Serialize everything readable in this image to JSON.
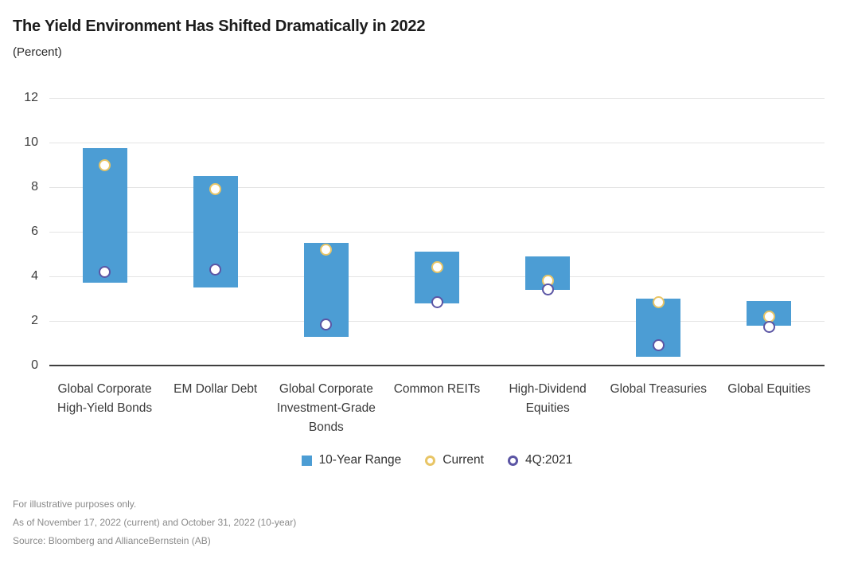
{
  "title": "The Yield Environment Has Shifted Dramatically in 2022",
  "subtitle": "(Percent)",
  "colors": {
    "bar": "#4c9dd4",
    "current_ring": "#e8c566",
    "prior_ring": "#5b55a4",
    "gridline": "#e4e4e4",
    "axis": "#3f3f3f",
    "title_text": "#1c1c1c",
    "footnote_text": "#8a8a8a"
  },
  "chart_data": {
    "type": "bar",
    "subtype": "floating-range-columns-with-point-markers",
    "title": "The Yield Environment Has Shifted Dramatically in 2022",
    "ylabel": "(Percent)",
    "ylim": [
      0,
      12
    ],
    "yticks": [
      0,
      2,
      4,
      6,
      8,
      10,
      12
    ],
    "grid": true,
    "legend_position": "bottom",
    "categories": [
      "Global Corporate High-Yield Bonds",
      "EM Dollar Debt",
      "Global Corporate Investment-Grade Bonds",
      "Common REITs",
      "High-Dividend Equities",
      "Global Treasuries",
      "Global Equities"
    ],
    "series": [
      {
        "name": "10-Year Range",
        "type": "range",
        "low": [
          3.7,
          3.5,
          1.3,
          2.8,
          3.4,
          0.4,
          1.8
        ],
        "high": [
          9.75,
          8.5,
          5.5,
          5.1,
          4.9,
          3.0,
          2.9
        ]
      },
      {
        "name": "Current",
        "type": "point",
        "values": [
          9.0,
          7.9,
          5.2,
          4.4,
          3.8,
          2.85,
          2.2
        ]
      },
      {
        "name": "4Q:2021",
        "type": "point",
        "values": [
          4.2,
          4.3,
          1.85,
          2.85,
          3.4,
          0.9,
          1.75
        ]
      }
    ]
  },
  "legend": {
    "items": [
      {
        "label": "10-Year Range",
        "swatch": "square"
      },
      {
        "label": "Current",
        "swatch": "ring-current"
      },
      {
        "label": "4Q:2021",
        "swatch": "ring-prior"
      }
    ]
  },
  "footnotes": [
    "For illustrative purposes only.",
    "As of November 17, 2022 (current) and October 31, 2022 (10-year)",
    "Source: Bloomberg and AllianceBernstein (AB)"
  ]
}
